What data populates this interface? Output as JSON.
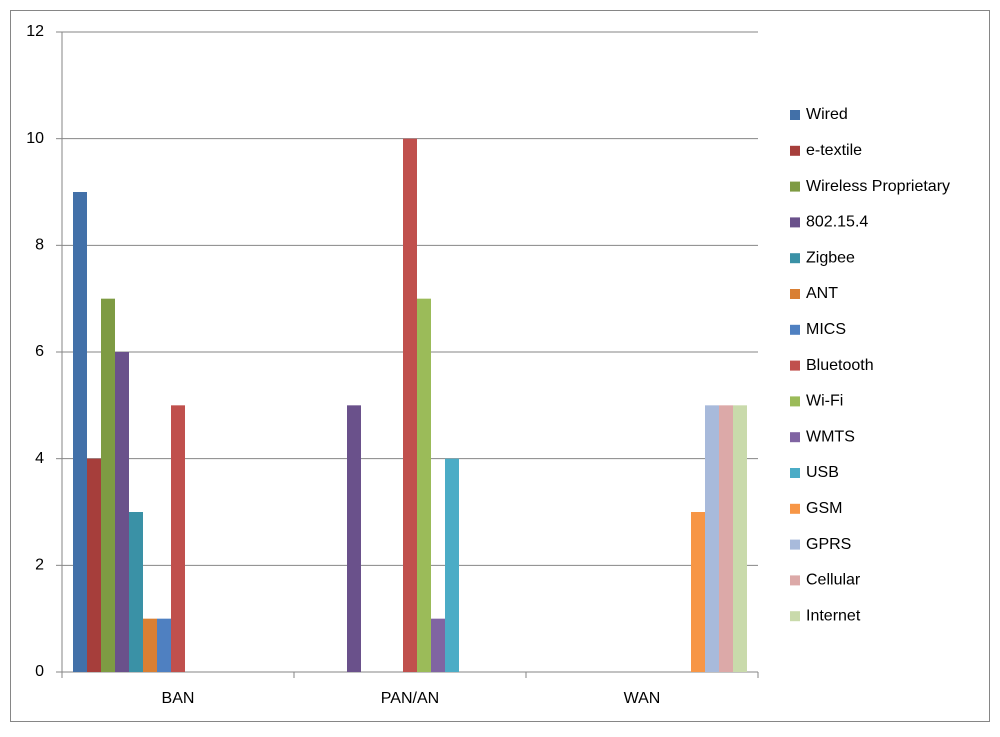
{
  "chart_data": {
    "type": "bar",
    "categories": [
      "BAN",
      "PAN/AN",
      "WAN"
    ],
    "series": [
      {
        "name": "Wired",
        "color": "#4270a8",
        "values": [
          9,
          0,
          0
        ]
      },
      {
        "name": "e-textile",
        "color": "#a63e3b",
        "values": [
          4,
          0,
          0
        ]
      },
      {
        "name": "Wireless Proprietary",
        "color": "#7e9b43",
        "values": [
          7,
          0,
          0
        ]
      },
      {
        "name": "802.15.4",
        "color": "#6a518b",
        "values": [
          6,
          5,
          0
        ]
      },
      {
        "name": "Zigbee",
        "color": "#3a91a6",
        "values": [
          3,
          0,
          0
        ]
      },
      {
        "name": "ANT",
        "color": "#d97f33",
        "values": [
          1,
          0,
          0
        ]
      },
      {
        "name": "MICS",
        "color": "#4f80c1",
        "values": [
          1,
          0,
          0
        ]
      },
      {
        "name": "Bluetooth",
        "color": "#c0504d",
        "values": [
          5,
          10,
          0
        ]
      },
      {
        "name": "Wi-Fi",
        "color": "#9bbb59",
        "values": [
          0,
          7,
          0
        ]
      },
      {
        "name": "WMTS",
        "color": "#8064a2",
        "values": [
          0,
          1,
          0
        ]
      },
      {
        "name": "USB",
        "color": "#4bacc6",
        "values": [
          0,
          4,
          0
        ]
      },
      {
        "name": "GSM",
        "color": "#f79646",
        "values": [
          0,
          0,
          3
        ]
      },
      {
        "name": "GPRS",
        "color": "#a8badb",
        "values": [
          0,
          0,
          5
        ]
      },
      {
        "name": "Cellular",
        "color": "#dca9a8",
        "values": [
          0,
          0,
          5
        ]
      },
      {
        "name": "Internet",
        "color": "#c9daab",
        "values": [
          0,
          0,
          5
        ]
      }
    ],
    "ylim": [
      0,
      12
    ],
    "yticks": [
      0,
      2,
      4,
      6,
      8,
      10,
      12
    ],
    "grid": true,
    "legend": "right"
  }
}
